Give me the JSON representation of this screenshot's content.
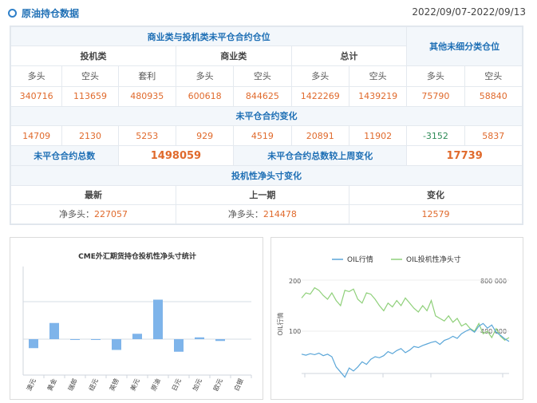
{
  "header": {
    "title": "原油持仓数据",
    "date_range": "2022/09/07-2022/09/13"
  },
  "table": {
    "group_title": "商业类与投机类未平仓合约仓位",
    "other_title": "其他未细分类仓位",
    "sub_groups": [
      "投机类",
      "商业类",
      "总计"
    ],
    "cols": [
      "多头",
      "空头",
      "套利",
      "多头",
      "空头",
      "多头",
      "空头",
      "多头",
      "空头"
    ],
    "positions": [
      "340716",
      "113659",
      "480935",
      "600618",
      "844625",
      "1422269",
      "1439219",
      "75790",
      "58840"
    ],
    "change_title": "未平仓合约变化",
    "changes": [
      "14709",
      "2130",
      "5253",
      "929",
      "4519",
      "20891",
      "11902",
      "-3152",
      "5837"
    ],
    "total_oi_label": "未平仓合约总数",
    "total_oi": "1498059",
    "total_change_label": "未平仓合约总数较上周变化",
    "total_change": "17739",
    "net_title": "投机性净头寸变化",
    "net_cols": [
      "最新",
      "上一期",
      "变化"
    ],
    "net_prefix": "净多头：",
    "net_latest": "227057",
    "net_prev": "214478",
    "net_change": "12579"
  },
  "colors": {
    "accent": "#1e6fb5",
    "value": "#e06a2c",
    "bar": "#7eb4ea",
    "oil_line": "#5aa6d8",
    "spec_line": "#8fd07a"
  },
  "chart_data": [
    {
      "type": "bar",
      "title": "CME外汇期货持仓投机性净头寸统计",
      "categories": [
        "澳元",
        "黄金",
        "瑞郎",
        "纽元",
        "英镑",
        "美元",
        "原油",
        "日元",
        "加元",
        "欧元",
        "白银"
      ],
      "values": [
        -25,
        45,
        -2,
        -2,
        -30,
        15,
        110,
        -35,
        5,
        -5,
        0
      ]
    },
    {
      "type": "line",
      "legend": [
        "OIL行情",
        "OIL投机性净头寸"
      ],
      "ylabel_left": "OIL行情",
      "yticks_left": [
        "200",
        "100"
      ],
      "yticks_right": [
        "800 000",
        "400 000"
      ],
      "series": [
        {
          "name": "OIL行情",
          "values": [
            55,
            53,
            56,
            54,
            57,
            52,
            55,
            50,
            30,
            20,
            10,
            28,
            22,
            30,
            40,
            35,
            45,
            50,
            48,
            52,
            60,
            56,
            62,
            66,
            58,
            63,
            70,
            68,
            72,
            75,
            78,
            80,
            74,
            82,
            85,
            90,
            86,
            95,
            100,
            104,
            98,
            110,
            115,
            106,
            112,
            98,
            92,
            85,
            80
          ]
        },
        {
          "name": "OIL投机性净头寸",
          "values": [
            660,
            700,
            690,
            740,
            720,
            680,
            650,
            700,
            640,
            600,
            720,
            710,
            730,
            650,
            620,
            700,
            690,
            650,
            600,
            560,
            620,
            590,
            640,
            600,
            660,
            620,
            580,
            550,
            600,
            560,
            640,
            520,
            500,
            480,
            520,
            470,
            500,
            440,
            460,
            420,
            400,
            460,
            380,
            400,
            350,
            420,
            360,
            330,
            350
          ]
        }
      ]
    }
  ]
}
